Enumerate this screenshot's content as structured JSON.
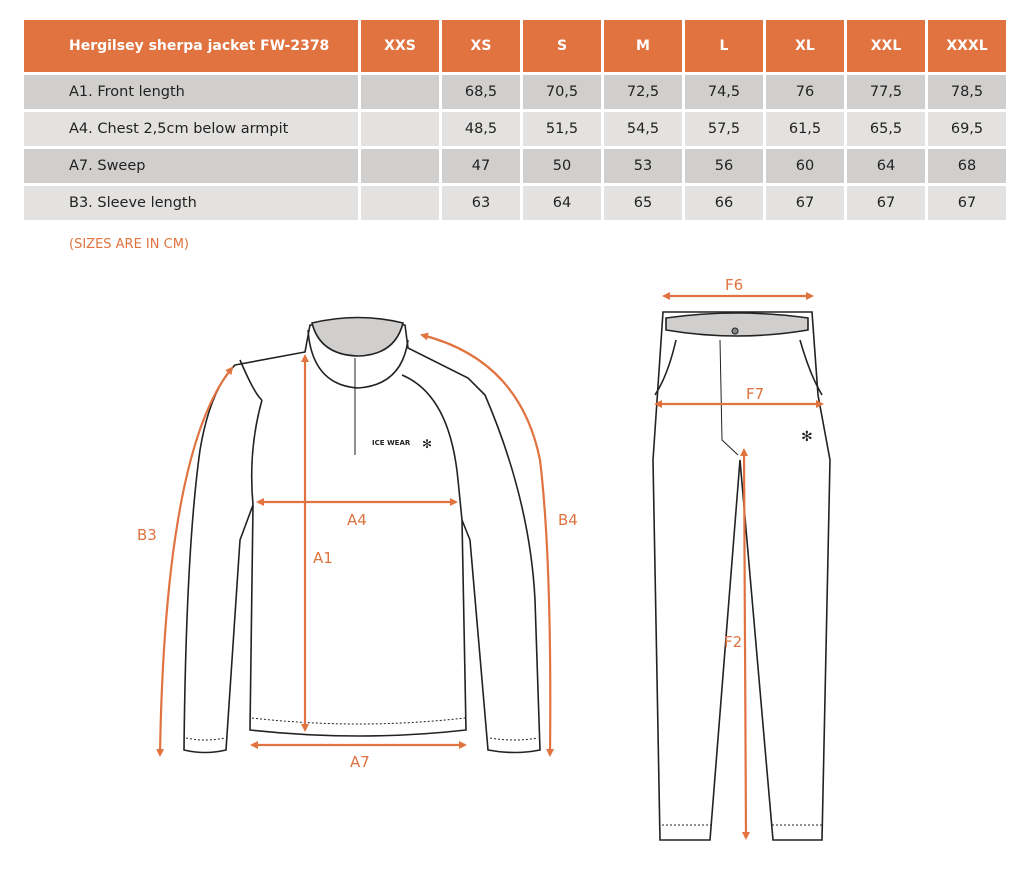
{
  "table": {
    "title": "Hergilsey sherpa jacket FW-2378",
    "sizes": [
      "XXS",
      "XS",
      "S",
      "M",
      "L",
      "XL",
      "XXL",
      "XXXL"
    ],
    "rows": [
      {
        "label": "A1. Front length",
        "values": [
          "",
          "68,5",
          "70,5",
          "72,5",
          "74,5",
          "76",
          "77,5",
          "78,5"
        ]
      },
      {
        "label": "A4. Chest 2,5cm below armpit",
        "values": [
          "",
          "48,5",
          "51,5",
          "54,5",
          "57,5",
          "61,5",
          "65,5",
          "69,5"
        ]
      },
      {
        "label": "A7. Sweep",
        "values": [
          "",
          "47",
          "50",
          "53",
          "56",
          "60",
          "64",
          "68"
        ]
      },
      {
        "label": "B3. Sleeve length",
        "values": [
          "",
          "63",
          "64",
          "65",
          "66",
          "67",
          "67",
          "67"
        ]
      }
    ]
  },
  "note": "(SIZES ARE IN CM)",
  "diagram": {
    "jacket_labels": {
      "b3": "B3",
      "a1": "A1",
      "a4": "A4",
      "b4": "B4",
      "a7": "A7"
    },
    "pants_labels": {
      "f6": "F6",
      "f7": "F7",
      "f2": "F2"
    },
    "logo": "ICE WEAR",
    "accent_color": "#e07340"
  }
}
